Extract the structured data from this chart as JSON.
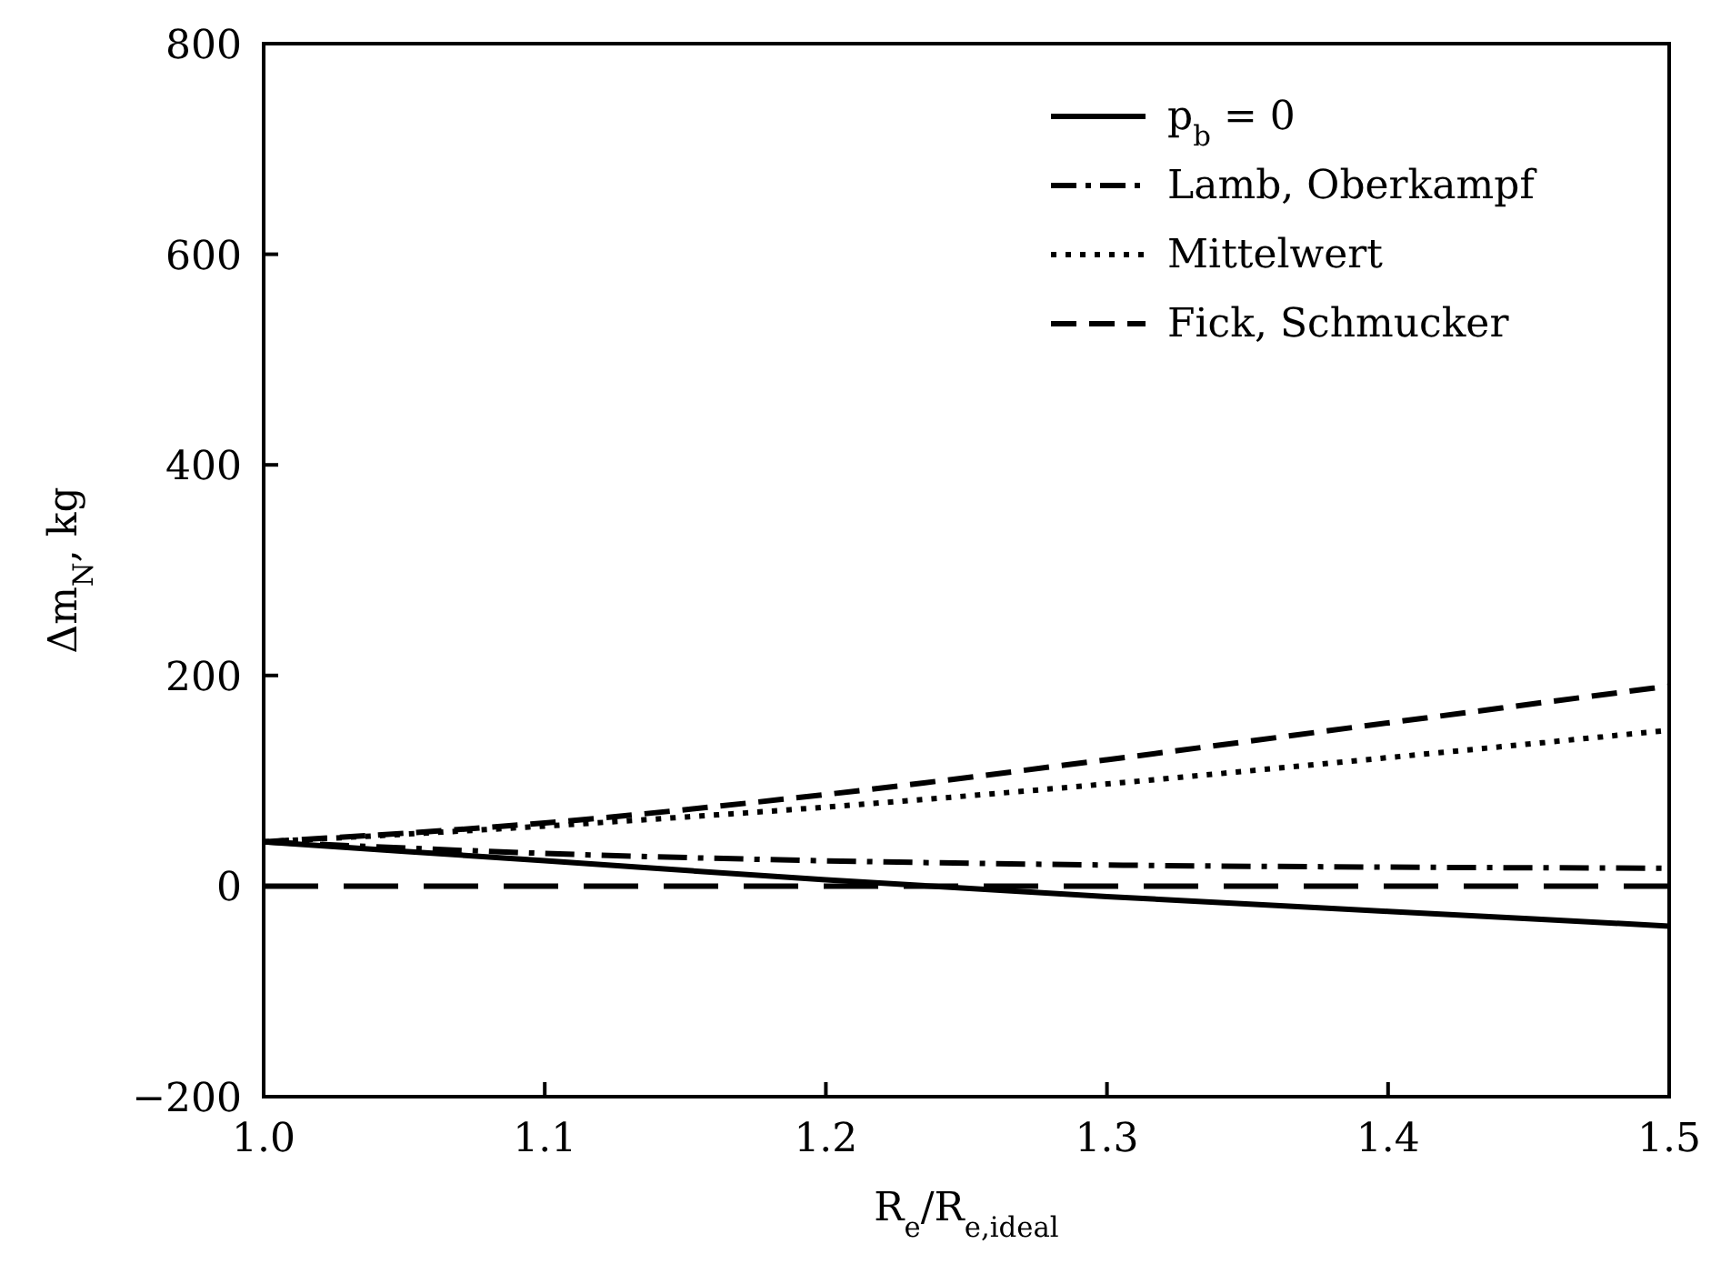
{
  "chart_data": {
    "type": "line",
    "xlabel": "R$_{e}$/R$_{e,ideal}$",
    "ylabel": "Δm$_{N}$, kg",
    "x": [
      1.0,
      1.1,
      1.2,
      1.3,
      1.4,
      1.5
    ],
    "series": [
      {
        "name": "p$_{b}$ = 0",
        "color": "#000000",
        "line_style": "solid",
        "values": [
          42,
          24,
          6,
          -10,
          -24,
          -38
        ]
      },
      {
        "name": "Lamb, Oberkampf",
        "color": "#000000",
        "line_style": "dashdot",
        "values": [
          42,
          31,
          24,
          20,
          18,
          17
        ]
      },
      {
        "name": "Mittelwert",
        "color": "#000000",
        "line_style": "dotted",
        "values": [
          42,
          57,
          75,
          97,
          122,
          148
        ]
      },
      {
        "name": "Fick, Schmucker",
        "color": "#000000",
        "line_style": "dashed",
        "values": [
          42,
          60,
          87,
          120,
          155,
          190
        ]
      }
    ],
    "ref_lines": [
      {
        "axis": "y",
        "value": 0,
        "color": "#000000",
        "line_style": "dashed"
      }
    ],
    "xlim": [
      1.0,
      1.5
    ],
    "xticks": [
      {
        "value": 1.0,
        "label": "1.0"
      },
      1.1,
      1.2,
      1.3,
      1.4,
      1.5
    ],
    "ylim": [
      -200,
      800
    ],
    "yticks": [
      -200,
      0,
      200,
      400,
      600,
      800
    ],
    "grid": false,
    "legend": "top right",
    "marker": "none"
  }
}
